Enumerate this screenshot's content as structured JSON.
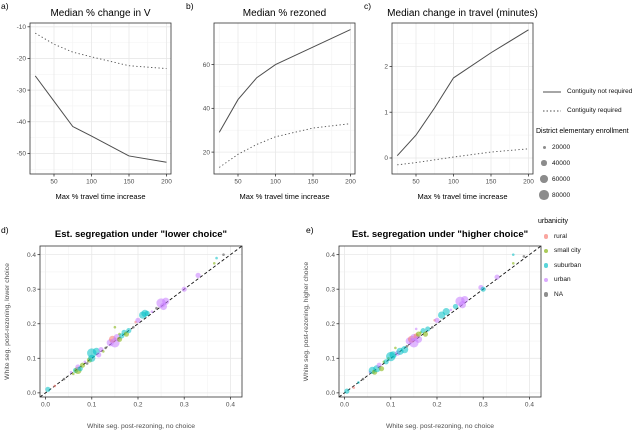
{
  "figure": {
    "panel_labels": {
      "a": "a)",
      "b": "b)",
      "c": "c)",
      "d": "d)",
      "e": "e)"
    }
  },
  "colors": {
    "line": "#4d4d4d",
    "panel_border": "#333333",
    "grid_major": "#e8e8e8",
    "grid_minor": "#f3f3f3",
    "diagonal": "#111111",
    "enrollment_dot": "#8c8c8c",
    "urbanicity": {
      "rural": "#F8766D",
      "small city": "#7CAE00",
      "suburban": "#00BFC4",
      "urban": "#C77CFF",
      "NA": "#7a7a7a"
    }
  },
  "legends": {
    "contiguity": {
      "items": [
        {
          "label": "Contiguity not required",
          "style": "solid"
        },
        {
          "label": "Contiguity required",
          "style": "dotted"
        }
      ]
    },
    "enrollment": {
      "title": "District elementary enrollment",
      "items": [
        {
          "label": "20000",
          "size": 1
        },
        {
          "label": "40000",
          "size": 2
        },
        {
          "label": "60000",
          "size": 3
        },
        {
          "label": "80000",
          "size": 4
        }
      ]
    },
    "urbanicity": {
      "title": "urbanicity",
      "items": [
        {
          "label": "rural",
          "key": "rural"
        },
        {
          "label": "small city",
          "key": "small city"
        },
        {
          "label": "suburban",
          "key": "suburban"
        },
        {
          "label": "urban",
          "key": "urban"
        },
        {
          "label": "NA",
          "key": "NA"
        }
      ]
    }
  },
  "chart_data": [
    {
      "id": "a",
      "type": "line",
      "title": "Median % change in V",
      "xlabel": "Max % travel time increase",
      "ylabel": "",
      "x": [
        25,
        50,
        75,
        100,
        150,
        200
      ],
      "series": [
        {
          "name": "Contiguity not required",
          "style": "solid",
          "values": [
            -25.5,
            -33.5,
            -41.5,
            -44.5,
            -50.8,
            -52.8
          ]
        },
        {
          "name": "Contiguity required",
          "style": "dotted",
          "values": [
            -12,
            -15.5,
            -18,
            -19.5,
            -22.3,
            -23.2
          ]
        }
      ],
      "xlim": [
        18,
        206
      ],
      "ylim": [
        -56.5,
        -8.8
      ],
      "xticks": [
        50,
        100,
        150,
        200
      ],
      "xtick_labels": [
        "50",
        "100",
        "150",
        "200"
      ],
      "yticks": [
        -10,
        -20,
        -30,
        -40,
        -50
      ],
      "ytick_labels": [
        "-10",
        "-20",
        "-30",
        "-40",
        "-50"
      ],
      "grid": true,
      "legend_position": "right-outside"
    },
    {
      "id": "b",
      "type": "line",
      "title": "Median % rezoned",
      "xlabel": "Max % travel time increase",
      "ylabel": "",
      "x": [
        25,
        50,
        75,
        100,
        150,
        200
      ],
      "series": [
        {
          "name": "Contiguity not required",
          "style": "solid",
          "values": [
            29,
            44,
            54,
            60,
            68,
            76
          ]
        },
        {
          "name": "Contiguity required",
          "style": "dotted",
          "values": [
            13,
            19,
            23.5,
            27,
            31,
            33
          ]
        }
      ],
      "xlim": [
        18,
        206
      ],
      "ylim": [
        10,
        79
      ],
      "xticks": [
        50,
        100,
        150,
        200
      ],
      "xtick_labels": [
        "50",
        "100",
        "150",
        "200"
      ],
      "yticks": [
        20,
        40,
        60
      ],
      "ytick_labels": [
        "20",
        "40",
        "60"
      ],
      "grid": true,
      "legend_position": "right-outside"
    },
    {
      "id": "c",
      "type": "line",
      "title": "Median change in travel (minutes)",
      "xlabel": "Max % travel time increase",
      "ylabel": "",
      "x": [
        25,
        50,
        75,
        100,
        150,
        200
      ],
      "series": [
        {
          "name": "Contiguity not required",
          "style": "solid",
          "values": [
            0.05,
            0.5,
            1.1,
            1.75,
            2.3,
            2.8
          ]
        },
        {
          "name": "Contiguity required",
          "style": "dotted",
          "values": [
            -0.15,
            -0.1,
            -0.04,
            0.02,
            0.13,
            0.2
          ]
        }
      ],
      "xlim": [
        18,
        206
      ],
      "ylim": [
        -0.35,
        2.95
      ],
      "xticks": [
        50,
        100,
        150,
        200
      ],
      "xtick_labels": [
        "50",
        "100",
        "150",
        "200"
      ],
      "yticks": [
        0,
        1,
        2
      ],
      "ytick_labels": [
        "0",
        "1",
        "2"
      ],
      "grid": true,
      "legend_position": "right-outside"
    },
    {
      "id": "d",
      "type": "scatter",
      "title": "Est. segregation under \"lower choice\"",
      "xlabel": "White seg. post-rezoning, no choice",
      "ylabel": "White seg. post-rezoning, lower choice",
      "xlim": [
        -0.012,
        0.425
      ],
      "ylim": [
        -0.012,
        0.425
      ],
      "xticks": [
        0,
        0.1,
        0.2,
        0.3,
        0.4
      ],
      "xtick_labels": [
        "0.0",
        "0.1",
        "0.2",
        "0.3",
        "0.4"
      ],
      "yticks": [
        0,
        0.1,
        0.2,
        0.3,
        0.4
      ],
      "ytick_labels": [
        "0.0",
        "0.1",
        "0.2",
        "0.3",
        "0.4"
      ],
      "diagonal": true,
      "grid": true,
      "point_legend": "size = district elementary enrollment; color = urbanicity",
      "points": [
        [
          0.005,
          0.01,
          "suburban",
          2
        ],
        [
          0.02,
          0.02,
          "rural",
          1
        ],
        [
          0.04,
          0.04,
          "NA",
          1
        ],
        [
          0.055,
          0.06,
          "urban",
          1
        ],
        [
          0.06,
          0.055,
          "small city",
          1
        ],
        [
          0.065,
          0.065,
          "suburban",
          2
        ],
        [
          0.07,
          0.065,
          "small city",
          3
        ],
        [
          0.07,
          0.075,
          "urban",
          2
        ],
        [
          0.075,
          0.07,
          "suburban",
          2
        ],
        [
          0.08,
          0.08,
          "small city",
          2
        ],
        [
          0.085,
          0.09,
          "urban",
          1
        ],
        [
          0.09,
          0.085,
          "NA",
          1
        ],
        [
          0.095,
          0.095,
          "small city",
          2
        ],
        [
          0.1,
          0.1,
          "suburban",
          3
        ],
        [
          0.1,
          0.115,
          "suburban",
          4
        ],
        [
          0.11,
          0.12,
          "suburban",
          3
        ],
        [
          0.115,
          0.11,
          "urban",
          2
        ],
        [
          0.12,
          0.125,
          "urban",
          2
        ],
        [
          0.125,
          0.12,
          "small city",
          1
        ],
        [
          0.13,
          0.13,
          "NA",
          1
        ],
        [
          0.14,
          0.145,
          "urban",
          3
        ],
        [
          0.145,
          0.155,
          "rural",
          3
        ],
        [
          0.15,
          0.145,
          "urban",
          4
        ],
        [
          0.15,
          0.19,
          "small city",
          1
        ],
        [
          0.155,
          0.16,
          "urban",
          3
        ],
        [
          0.16,
          0.155,
          "small city",
          2
        ],
        [
          0.16,
          0.17,
          "small city",
          1
        ],
        [
          0.165,
          0.165,
          "suburban",
          2
        ],
        [
          0.17,
          0.175,
          "suburban",
          2
        ],
        [
          0.175,
          0.17,
          "small city",
          2
        ],
        [
          0.18,
          0.18,
          "suburban",
          2
        ],
        [
          0.19,
          0.19,
          "NA",
          1
        ],
        [
          0.195,
          0.205,
          "rural",
          1
        ],
        [
          0.2,
          0.21,
          "urban",
          2
        ],
        [
          0.21,
          0.225,
          "suburban",
          3
        ],
        [
          0.215,
          0.23,
          "suburban",
          3
        ],
        [
          0.22,
          0.23,
          "suburban",
          2
        ],
        [
          0.23,
          0.235,
          "urban",
          1
        ],
        [
          0.24,
          0.245,
          "NA",
          1
        ],
        [
          0.25,
          0.26,
          "urban",
          4
        ],
        [
          0.255,
          0.25,
          "urban",
          3
        ],
        [
          0.26,
          0.265,
          "urban",
          3
        ],
        [
          0.3,
          0.3,
          "urban",
          2
        ],
        [
          0.33,
          0.34,
          "urban",
          2
        ],
        [
          0.365,
          0.375,
          "small city",
          1
        ],
        [
          0.37,
          0.39,
          "suburban",
          1
        ],
        [
          0.385,
          0.4,
          "NA",
          1
        ]
      ]
    },
    {
      "id": "e",
      "type": "scatter",
      "title": "Est. segregation under \"higher choice\"",
      "xlabel": "White seg. post-rezoning, no choice",
      "ylabel": "White seg. post-rezoning, higher choice",
      "xlim": [
        -0.012,
        0.425
      ],
      "ylim": [
        -0.012,
        0.425
      ],
      "xticks": [
        0,
        0.1,
        0.2,
        0.3,
        0.4
      ],
      "xtick_labels": [
        "0.0",
        "0.1",
        "0.2",
        "0.3",
        "0.4"
      ],
      "yticks": [
        0,
        0.1,
        0.2,
        0.3,
        0.4
      ],
      "ytick_labels": [
        "0.0",
        "0.1",
        "0.2",
        "0.3",
        "0.4"
      ],
      "diagonal": true,
      "grid": true,
      "point_legend": "size = district elementary enrollment; color = urbanicity",
      "points": [
        [
          0.005,
          0.005,
          "suburban",
          2
        ],
        [
          0.02,
          0.015,
          "rural",
          1
        ],
        [
          0.03,
          0.03,
          "suburban",
          1
        ],
        [
          0.04,
          0.04,
          "NA",
          1
        ],
        [
          0.055,
          0.06,
          "urban",
          1
        ],
        [
          0.06,
          0.065,
          "suburban",
          3
        ],
        [
          0.065,
          0.06,
          "small city",
          2
        ],
        [
          0.07,
          0.07,
          "suburban",
          3
        ],
        [
          0.075,
          0.08,
          "urban",
          2
        ],
        [
          0.08,
          0.07,
          "small city",
          2
        ],
        [
          0.085,
          0.09,
          "small city",
          1
        ],
        [
          0.09,
          0.09,
          "suburban",
          2
        ],
        [
          0.095,
          0.1,
          "small city",
          1
        ],
        [
          0.1,
          0.105,
          "suburban",
          4
        ],
        [
          0.105,
          0.11,
          "suburban",
          3
        ],
        [
          0.11,
          0.13,
          "small city",
          1
        ],
        [
          0.115,
          0.115,
          "urban",
          2
        ],
        [
          0.12,
          0.12,
          "suburban",
          3
        ],
        [
          0.13,
          0.125,
          "suburban",
          3
        ],
        [
          0.135,
          0.135,
          "NA",
          1
        ],
        [
          0.14,
          0.15,
          "urban",
          3
        ],
        [
          0.145,
          0.155,
          "rural",
          3
        ],
        [
          0.15,
          0.145,
          "urban",
          4
        ],
        [
          0.15,
          0.16,
          "urban",
          3
        ],
        [
          0.155,
          0.165,
          "rural",
          2
        ],
        [
          0.155,
          0.185,
          "urban",
          1
        ],
        [
          0.16,
          0.155,
          "urban",
          3
        ],
        [
          0.16,
          0.17,
          "small city",
          2
        ],
        [
          0.165,
          0.175,
          "small city",
          1
        ],
        [
          0.17,
          0.18,
          "suburban",
          2
        ],
        [
          0.175,
          0.17,
          "small city",
          2
        ],
        [
          0.18,
          0.185,
          "suburban",
          2
        ],
        [
          0.19,
          0.19,
          "NA",
          1
        ],
        [
          0.195,
          0.21,
          "rural",
          1
        ],
        [
          0.2,
          0.21,
          "urban",
          2
        ],
        [
          0.21,
          0.225,
          "suburban",
          3
        ],
        [
          0.22,
          0.235,
          "suburban",
          3
        ],
        [
          0.23,
          0.24,
          "urban",
          1
        ],
        [
          0.24,
          0.25,
          "suburban",
          2
        ],
        [
          0.25,
          0.265,
          "urban",
          4
        ],
        [
          0.255,
          0.255,
          "urban",
          3
        ],
        [
          0.26,
          0.27,
          "urban",
          3
        ],
        [
          0.295,
          0.305,
          "urban",
          2
        ],
        [
          0.3,
          0.3,
          "suburban",
          2
        ],
        [
          0.33,
          0.335,
          "urban",
          2
        ],
        [
          0.365,
          0.4,
          "suburban",
          1
        ],
        [
          0.365,
          0.375,
          "small city",
          1
        ],
        [
          0.388,
          0.395,
          "NA",
          1
        ]
      ]
    }
  ]
}
